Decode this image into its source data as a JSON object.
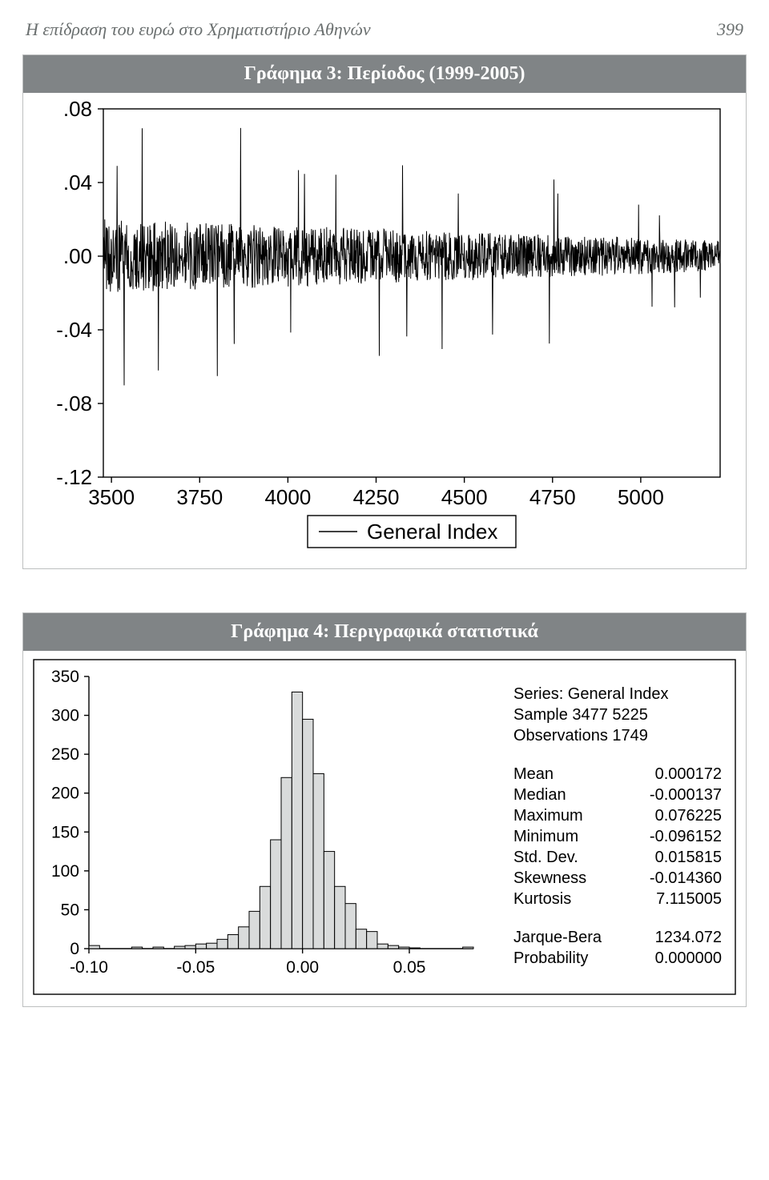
{
  "header": {
    "title": "Η επίδραση του ευρώ στο Χρηματιστήριο Αθηνών",
    "page_number": "399"
  },
  "colors": {
    "page_bg": "#ffffff",
    "border": "#bdbfbf",
    "title_bg": "#808486",
    "title_text": "#ffffff",
    "series": "#000000",
    "axis": "#000000",
    "bar_fill": "#d9dbdb",
    "bar_stroke": "#000000",
    "header_text": "#6a6f6f"
  },
  "chart3": {
    "title": "Γράφημα 3: Περίοδος (1999-2005)",
    "type": "line",
    "legend_label": "General Index",
    "x": {
      "min": 3477,
      "max": 5225,
      "ticks": [
        3500,
        3750,
        4000,
        4250,
        4500,
        4750,
        5000
      ],
      "tick_labels": [
        "3500",
        "3750",
        "4000",
        "4250",
        "4500",
        "4750",
        "5000"
      ],
      "fontsize": 26
    },
    "y": {
      "min": -0.12,
      "max": 0.08,
      "ticks": [
        -0.12,
        -0.08,
        -0.04,
        0.0,
        0.04,
        0.08
      ],
      "tick_labels": [
        "-.12",
        "-.08",
        "-.04",
        ".00",
        ".04",
        ".08"
      ],
      "fontsize": 26
    },
    "line_color": "#000000",
    "line_width": 1
  },
  "chart4": {
    "title": "Γράφημα 4: Περιγραφικά στατιστικά",
    "type": "histogram_with_stats",
    "hist": {
      "x": {
        "min": -0.1,
        "max": 0.08,
        "ticks": [
          -0.1,
          -0.05,
          0.0,
          0.05
        ],
        "tick_labels": [
          "-0.10",
          "-0.05",
          "0.00",
          "0.05"
        ],
        "fontsize": 21
      },
      "y": {
        "min": 0,
        "max": 350,
        "ticks": [
          0,
          50,
          100,
          150,
          200,
          250,
          300,
          350
        ],
        "tick_labels": [
          "0",
          "50",
          "100",
          "150",
          "200",
          "250",
          "300",
          "350"
        ],
        "fontsize": 21
      },
      "bin_width": 0.005,
      "bin_starts": [
        -0.1,
        -0.095,
        -0.09,
        -0.085,
        -0.08,
        -0.075,
        -0.07,
        -0.065,
        -0.06,
        -0.055,
        -0.05,
        -0.045,
        -0.04,
        -0.035,
        -0.03,
        -0.025,
        -0.02,
        -0.015,
        -0.01,
        -0.005,
        0.0,
        0.005,
        0.01,
        0.015,
        0.02,
        0.025,
        0.03,
        0.035,
        0.04,
        0.045,
        0.05,
        0.055,
        0.06,
        0.065,
        0.07,
        0.075
      ],
      "counts": [
        4,
        0,
        0,
        0,
        2,
        0,
        2,
        0,
        3,
        4,
        6,
        7,
        12,
        18,
        28,
        48,
        80,
        140,
        220,
        330,
        295,
        225,
        125,
        80,
        58,
        25,
        22,
        6,
        4,
        2,
        1,
        0,
        0,
        0,
        0,
        2
      ],
      "bar_fill": "#d9dbdb",
      "bar_stroke": "#000000",
      "bar_stroke_width": 1
    },
    "stats_header": [
      "Series: General Index",
      "Sample 3477 5225",
      "Observations 1749"
    ],
    "stats": [
      {
        "label": "Mean",
        "value": "0.000172"
      },
      {
        "label": "Median",
        "value": "-0.000137"
      },
      {
        "label": "Maximum",
        "value": "0.076225"
      },
      {
        "label": "Minimum",
        "value": "-0.096152"
      },
      {
        "label": "Std. Dev.",
        "value": "0.015815"
      },
      {
        "label": "Skewness",
        "value": "-0.014360"
      },
      {
        "label": "Kurtosis",
        "value": "7.115005"
      }
    ],
    "stats_footer": [
      {
        "label": "Jarque-Bera",
        "value": "1234.072"
      },
      {
        "label": "Probability",
        "value": "0.000000"
      }
    ],
    "stats_fontsize": 20
  }
}
